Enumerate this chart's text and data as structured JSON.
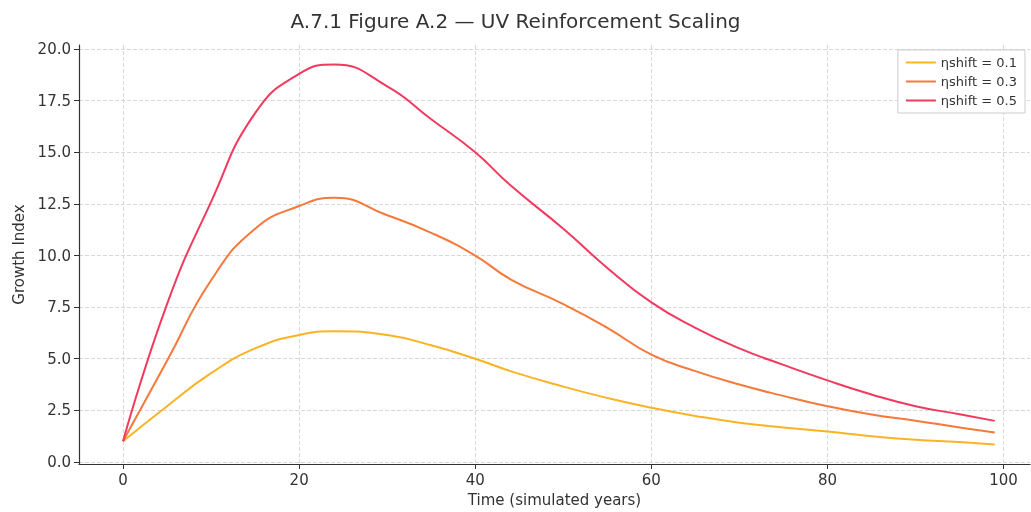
{
  "chart_data": {
    "type": "line",
    "title": "A.7.1 Figure A.2 — UV Reinforcement Scaling",
    "xlabel": "Time (simulated years)",
    "ylabel": "Growth Index",
    "x": [
      0,
      5,
      10,
      15,
      20,
      24,
      30,
      35,
      40,
      44,
      50,
      55,
      60,
      65,
      70,
      75,
      80,
      85,
      90,
      95,
      99
    ],
    "series": [
      {
        "name": "ηshift = 0.1",
        "color": "#fbb324",
        "values": [
          1,
          2.7,
          4.3,
          5.5,
          6.15,
          6.33,
          6.15,
          5.65,
          5.0,
          4.4,
          3.65,
          3.1,
          2.63,
          2.23,
          1.9,
          1.67,
          1.47,
          1.24,
          1.07,
          0.96,
          0.84
        ]
      },
      {
        "name": "ηshift = 0.3",
        "color": "#f5793a",
        "values": [
          1,
          4.9,
          8.8,
          11.3,
          12.4,
          12.8,
          11.95,
          11.1,
          10.0,
          8.85,
          7.65,
          6.5,
          5.2,
          4.4,
          3.75,
          3.2,
          2.7,
          2.3,
          2.0,
          1.67,
          1.43
        ]
      },
      {
        "name": "ηshift = 0.5",
        "color": "#f2395e",
        "values": [
          1,
          7.65,
          12.6,
          16.9,
          18.8,
          19.25,
          18.2,
          16.6,
          15.0,
          13.4,
          11.3,
          9.4,
          7.73,
          6.5,
          5.5,
          4.7,
          3.95,
          3.27,
          2.7,
          2.31,
          1.99
        ]
      }
    ],
    "xlim": [
      -5,
      103
    ],
    "xticks": [
      0,
      20,
      40,
      60,
      80,
      100
    ],
    "ylim": [
      -0.1,
      20.2
    ],
    "yticks": [
      {
        "value": 0,
        "label": "0.0"
      },
      {
        "value": 2.5,
        "label": "2.5"
      },
      {
        "value": 5,
        "label": "5.0"
      },
      {
        "value": 7.5,
        "label": "7.5"
      },
      {
        "value": 10,
        "label": "10.0"
      },
      {
        "value": 12.5,
        "label": "12.5"
      },
      {
        "value": 15,
        "label": "15.0"
      },
      {
        "value": 17.5,
        "label": "17.5"
      },
      {
        "value": 20,
        "label": "20.0"
      }
    ],
    "grid": true,
    "legend": "top right",
    "marker": "none",
    "line_style": "solid"
  }
}
